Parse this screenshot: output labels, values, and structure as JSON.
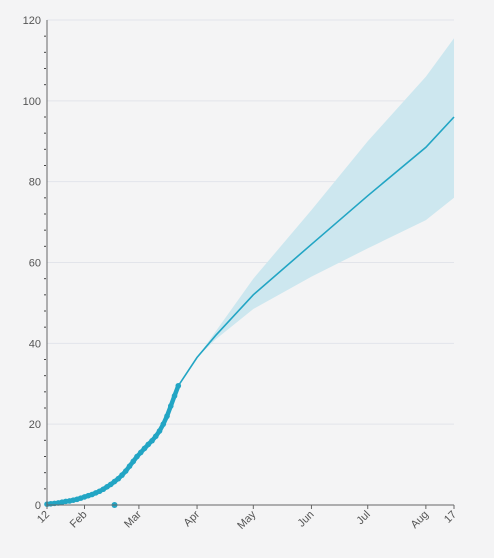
{
  "chart_data": {
    "type": "line",
    "title": "",
    "xlabel": "",
    "ylabel": "",
    "grid": true,
    "ylim": [
      0,
      120
    ],
    "y_ticks": [
      0,
      20,
      40,
      60,
      80,
      100,
      120
    ],
    "x_tick_labels": [
      "12",
      "Feb",
      "Mar",
      "Apr",
      "May",
      "Jun",
      "Jul",
      "Aug",
      "17"
    ],
    "x_tick_days": [
      0,
      20,
      49,
      80,
      110,
      141,
      171,
      202,
      217
    ],
    "colors": {
      "series": "#22a5c4",
      "band": "#cde7ef"
    },
    "observed": [
      [
        0,
        0.2
      ],
      [
        2,
        0.3
      ],
      [
        4,
        0.4
      ],
      [
        6,
        0.5
      ],
      [
        8,
        0.7
      ],
      [
        10,
        0.9
      ],
      [
        12,
        1.0
      ],
      [
        14,
        1.2
      ],
      [
        16,
        1.4
      ],
      [
        18,
        1.7
      ],
      [
        20,
        2.0
      ],
      [
        22,
        2.3
      ],
      [
        24,
        2.6
      ],
      [
        26,
        3.0
      ],
      [
        28,
        3.4
      ],
      [
        30,
        3.9
      ],
      [
        32,
        4.5
      ],
      [
        34,
        5.1
      ],
      [
        36,
        5.8
      ],
      [
        38,
        6.5
      ],
      [
        40,
        7.4
      ],
      [
        42,
        8.4
      ],
      [
        44,
        9.6
      ],
      [
        46,
        10.8
      ],
      [
        48,
        12.0
      ],
      [
        50,
        13.0
      ],
      [
        52,
        14.0
      ],
      [
        54,
        15.0
      ],
      [
        56,
        15.9
      ],
      [
        58,
        17.0
      ],
      [
        60,
        18.3
      ],
      [
        62,
        20.0
      ],
      [
        64,
        22.0
      ],
      [
        66,
        24.5
      ],
      [
        68,
        27.0
      ],
      [
        70,
        29.5
      ]
    ],
    "outlier": [
      36,
      0
    ],
    "forecast": [
      [
        70,
        29.5
      ],
      [
        80,
        36.5
      ],
      [
        90,
        42.0
      ],
      [
        110,
        52.0
      ],
      [
        141,
        64.5
      ],
      [
        171,
        76.5
      ],
      [
        202,
        88.5
      ],
      [
        217,
        96.0
      ]
    ],
    "band_upper": [
      [
        70,
        29.5
      ],
      [
        80,
        36.5
      ],
      [
        90,
        43.0
      ],
      [
        110,
        56.0
      ],
      [
        141,
        73.0
      ],
      [
        171,
        90.0
      ],
      [
        202,
        106.0
      ],
      [
        217,
        115.5
      ]
    ],
    "band_lower": [
      [
        70,
        29.5
      ],
      [
        80,
        36.5
      ],
      [
        90,
        41.0
      ],
      [
        110,
        48.5
      ],
      [
        141,
        56.5
      ],
      [
        171,
        63.5
      ],
      [
        202,
        70.5
      ],
      [
        217,
        76.0
      ]
    ]
  }
}
